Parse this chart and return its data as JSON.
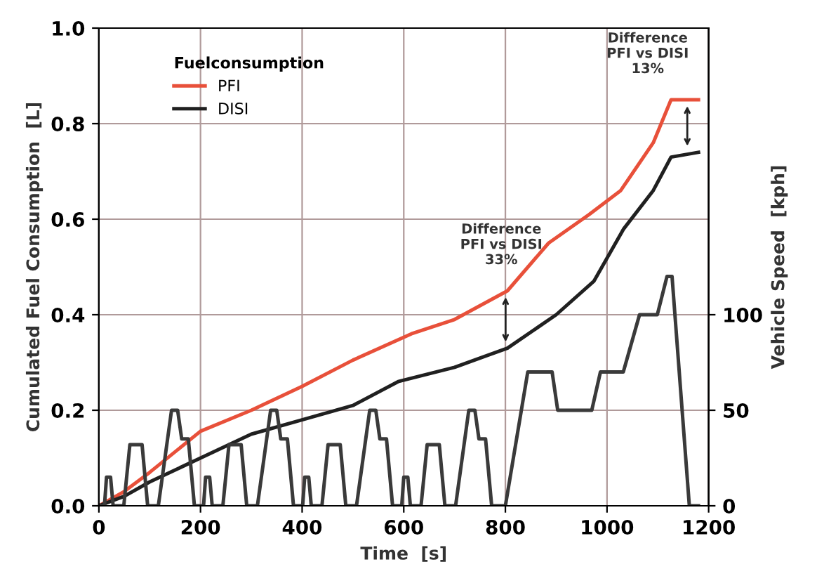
{
  "chart_data": {
    "type": "line",
    "xlabel": "Time  [s]",
    "ylabel": "Cumulated Fuel Consumption  [L]",
    "y2label": "Vehicle Speed  [kph]",
    "legend_title": "Fuelconsumption",
    "legend": "top left",
    "grid": true,
    "xlim": [
      0,
      1200
    ],
    "xticks": [
      0,
      200,
      400,
      600,
      800,
      1000,
      1200
    ],
    "ylim": [
      0,
      1.0
    ],
    "yticks": [
      {
        "value": 0,
        "label": "0.0"
      },
      {
        "value": 0.2,
        "label": "0.2"
      },
      {
        "value": 0.4,
        "label": "0.4"
      },
      {
        "value": 0.6,
        "label": "0.6"
      },
      {
        "value": 0.8,
        "label": "0.8"
      },
      {
        "value": 1.0,
        "label": "1.0"
      }
    ],
    "y2lim": [
      0,
      250
    ],
    "y2ticks": [
      0,
      50,
      100
    ],
    "series": [
      {
        "name": "PFI",
        "color": "#e8503a",
        "x": [
          0,
          50,
          100,
          200,
          300,
          400,
          500,
          615,
          700,
          804,
          885,
          965,
          1027,
          1091,
          1126,
          1180
        ],
        "values": [
          0,
          0.03,
          0.07,
          0.156,
          0.2,
          0.25,
          0.305,
          0.36,
          0.39,
          0.45,
          0.55,
          0.61,
          0.66,
          0.76,
          0.85,
          0.85
        ]
      },
      {
        "name": "DISI",
        "color": "#202020",
        "x": [
          0,
          50,
          100,
          200,
          300,
          400,
          500,
          589,
          700,
          804,
          900,
          974,
          1033,
          1091,
          1126,
          1180
        ],
        "values": [
          0,
          0.02,
          0.05,
          0.1,
          0.15,
          0.18,
          0.21,
          0.26,
          0.29,
          0.33,
          0.4,
          0.47,
          0.58,
          0.66,
          0.73,
          0.74
        ]
      },
      {
        "color": "#3a3a3a",
        "axis": "y2",
        "x": [
          0,
          11,
          15,
          23,
          28,
          49,
          61,
          85,
          96,
          117,
          143,
          155,
          163,
          176,
          188,
          206,
          210,
          218,
          223,
          244,
          256,
          280,
          291,
          312,
          338,
          350,
          358,
          371,
          383,
          401,
          405,
          413,
          418,
          439,
          451,
          475,
          486,
          507,
          533,
          545,
          553,
          566,
          578,
          596,
          600,
          608,
          613,
          634,
          646,
          670,
          681,
          702,
          728,
          740,
          748,
          761,
          773,
          800,
          844,
          892,
          903,
          970,
          987,
          1032,
          1064,
          1099,
          1118,
          1128,
          1162,
          1180
        ],
        "values": [
          0,
          0,
          15,
          15,
          0,
          0,
          32,
          32,
          0,
          0,
          50,
          50,
          35,
          35,
          0,
          0,
          15,
          15,
          0,
          0,
          32,
          32,
          0,
          0,
          50,
          50,
          35,
          35,
          0,
          0,
          15,
          15,
          0,
          0,
          32,
          32,
          0,
          0,
          50,
          50,
          35,
          35,
          0,
          0,
          15,
          15,
          0,
          0,
          32,
          32,
          0,
          0,
          50,
          50,
          35,
          35,
          0,
          0,
          70,
          70,
          50,
          50,
          70,
          70,
          100,
          100,
          120,
          120,
          0,
          0
        ]
      }
    ],
    "annotations": [
      "Difference\nPFI vs DISI\n33%",
      "Difference\nPFI vs DISI\n13%"
    ]
  }
}
